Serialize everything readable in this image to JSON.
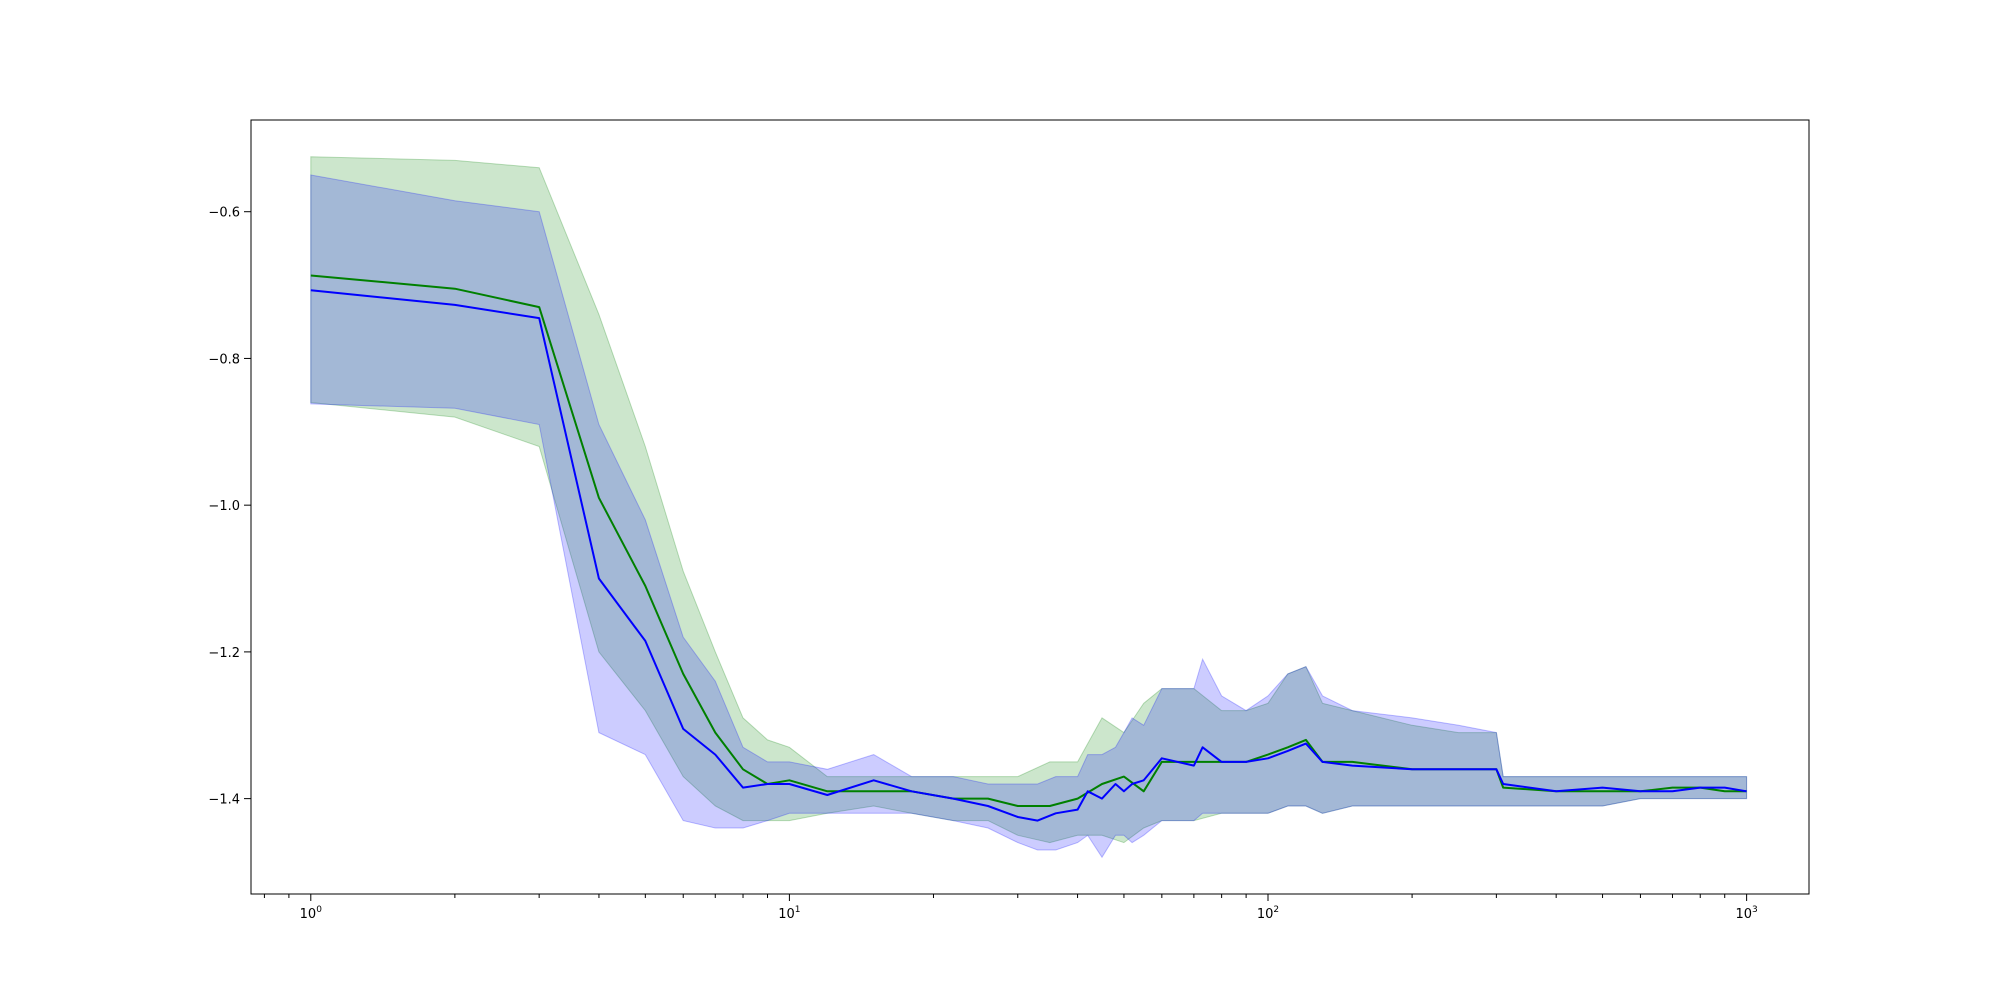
{
  "chart_data": {
    "type": "line",
    "title": "",
    "xlabel": "",
    "ylabel": "",
    "x_scale": "log",
    "xlim": [
      0.75,
      1350
    ],
    "ylim": [
      -1.53,
      -0.475
    ],
    "grid": false,
    "legend": "none",
    "x_ticks": [
      {
        "value": 1,
        "base": "10",
        "exp": "0"
      },
      {
        "value": 10,
        "base": "10",
        "exp": "1"
      },
      {
        "value": 100,
        "base": "10",
        "exp": "2"
      },
      {
        "value": 1000,
        "base": "10",
        "exp": "3"
      }
    ],
    "y_ticks": [
      {
        "value": -0.6,
        "label": "−0.6"
      },
      {
        "value": -0.8,
        "label": "−0.8"
      },
      {
        "value": -1.0,
        "label": "−1.0"
      },
      {
        "value": -1.2,
        "label": "−1.2"
      },
      {
        "value": -1.4,
        "label": "−1.4"
      }
    ],
    "series": [
      {
        "color": "#008000",
        "band_color": "#008000",
        "band_alpha": 0.2,
        "x": [
          1,
          2,
          3,
          4,
          5,
          6,
          7,
          8,
          9,
          10,
          12,
          15,
          18,
          22,
          26,
          30,
          35,
          40,
          45,
          50,
          55,
          60,
          70,
          80,
          90,
          100,
          110,
          120,
          130,
          150,
          200,
          250,
          300,
          310,
          400,
          500,
          600,
          700,
          800,
          900,
          1000
        ],
        "y": [
          -0.687,
          -0.705,
          -0.73,
          -0.99,
          -1.11,
          -1.23,
          -1.31,
          -1.36,
          -1.38,
          -1.375,
          -1.39,
          -1.39,
          -1.39,
          -1.4,
          -1.4,
          -1.41,
          -1.41,
          -1.4,
          -1.38,
          -1.37,
          -1.39,
          -1.35,
          -1.35,
          -1.35,
          -1.35,
          -1.34,
          -1.33,
          -1.32,
          -1.35,
          -1.35,
          -1.36,
          -1.36,
          -1.36,
          -1.385,
          -1.39,
          -1.39,
          -1.39,
          -1.385,
          -1.385,
          -1.39,
          -1.39
        ],
        "lower": [
          -0.86,
          -0.88,
          -0.92,
          -1.2,
          -1.28,
          -1.37,
          -1.41,
          -1.43,
          -1.43,
          -1.43,
          -1.42,
          -1.41,
          -1.42,
          -1.43,
          -1.43,
          -1.45,
          -1.46,
          -1.45,
          -1.45,
          -1.46,
          -1.44,
          -1.43,
          -1.43,
          -1.42,
          -1.42,
          -1.42,
          -1.41,
          -1.41,
          -1.42,
          -1.41,
          -1.41,
          -1.41,
          -1.41,
          -1.41,
          -1.41,
          -1.41,
          -1.4,
          -1.4,
          -1.4,
          -1.4,
          -1.4
        ],
        "upper": [
          -0.525,
          -0.53,
          -0.54,
          -0.74,
          -0.92,
          -1.09,
          -1.2,
          -1.29,
          -1.32,
          -1.33,
          -1.37,
          -1.37,
          -1.37,
          -1.37,
          -1.37,
          -1.37,
          -1.35,
          -1.35,
          -1.29,
          -1.31,
          -1.27,
          -1.25,
          -1.25,
          -1.28,
          -1.28,
          -1.27,
          -1.23,
          -1.22,
          -1.27,
          -1.28,
          -1.3,
          -1.31,
          -1.31,
          -1.37,
          -1.37,
          -1.37,
          -1.37,
          -1.37,
          -1.37,
          -1.37,
          -1.37
        ]
      },
      {
        "color": "#0000ff",
        "band_color": "#0000ff",
        "band_alpha": 0.2,
        "x": [
          1,
          2,
          3,
          4,
          5,
          6,
          7,
          8,
          9,
          10,
          12,
          15,
          18,
          22,
          26,
          30,
          33,
          36,
          40,
          42,
          45,
          48,
          50,
          52,
          55,
          60,
          70,
          73,
          80,
          90,
          100,
          110,
          120,
          130,
          150,
          200,
          250,
          300,
          310,
          400,
          500,
          600,
          700,
          800,
          900,
          1000
        ],
        "y": [
          -0.707,
          -0.727,
          -0.745,
          -1.1,
          -1.185,
          -1.305,
          -1.34,
          -1.385,
          -1.38,
          -1.38,
          -1.395,
          -1.375,
          -1.39,
          -1.4,
          -1.41,
          -1.425,
          -1.43,
          -1.42,
          -1.415,
          -1.39,
          -1.4,
          -1.38,
          -1.39,
          -1.38,
          -1.375,
          -1.345,
          -1.355,
          -1.33,
          -1.35,
          -1.35,
          -1.345,
          -1.335,
          -1.325,
          -1.35,
          -1.355,
          -1.36,
          -1.36,
          -1.36,
          -1.38,
          -1.39,
          -1.385,
          -1.39,
          -1.39,
          -1.385,
          -1.385,
          -1.39
        ],
        "lower": [
          -0.862,
          -0.868,
          -0.89,
          -1.31,
          -1.34,
          -1.43,
          -1.44,
          -1.44,
          -1.43,
          -1.42,
          -1.42,
          -1.42,
          -1.42,
          -1.43,
          -1.44,
          -1.46,
          -1.47,
          -1.47,
          -1.46,
          -1.45,
          -1.48,
          -1.45,
          -1.45,
          -1.46,
          -1.45,
          -1.43,
          -1.43,
          -1.42,
          -1.42,
          -1.42,
          -1.42,
          -1.41,
          -1.41,
          -1.42,
          -1.41,
          -1.41,
          -1.41,
          -1.41,
          -1.41,
          -1.41,
          -1.41,
          -1.4,
          -1.4,
          -1.4,
          -1.4,
          -1.4
        ],
        "upper": [
          -0.55,
          -0.585,
          -0.6,
          -0.89,
          -1.02,
          -1.18,
          -1.24,
          -1.33,
          -1.35,
          -1.35,
          -1.36,
          -1.34,
          -1.37,
          -1.37,
          -1.38,
          -1.38,
          -1.38,
          -1.37,
          -1.37,
          -1.34,
          -1.34,
          -1.33,
          -1.31,
          -1.29,
          -1.3,
          -1.25,
          -1.25,
          -1.21,
          -1.26,
          -1.28,
          -1.26,
          -1.23,
          -1.22,
          -1.26,
          -1.28,
          -1.29,
          -1.3,
          -1.31,
          -1.37,
          -1.37,
          -1.37,
          -1.37,
          -1.37,
          -1.37,
          -1.37,
          -1.37
        ]
      }
    ]
  }
}
